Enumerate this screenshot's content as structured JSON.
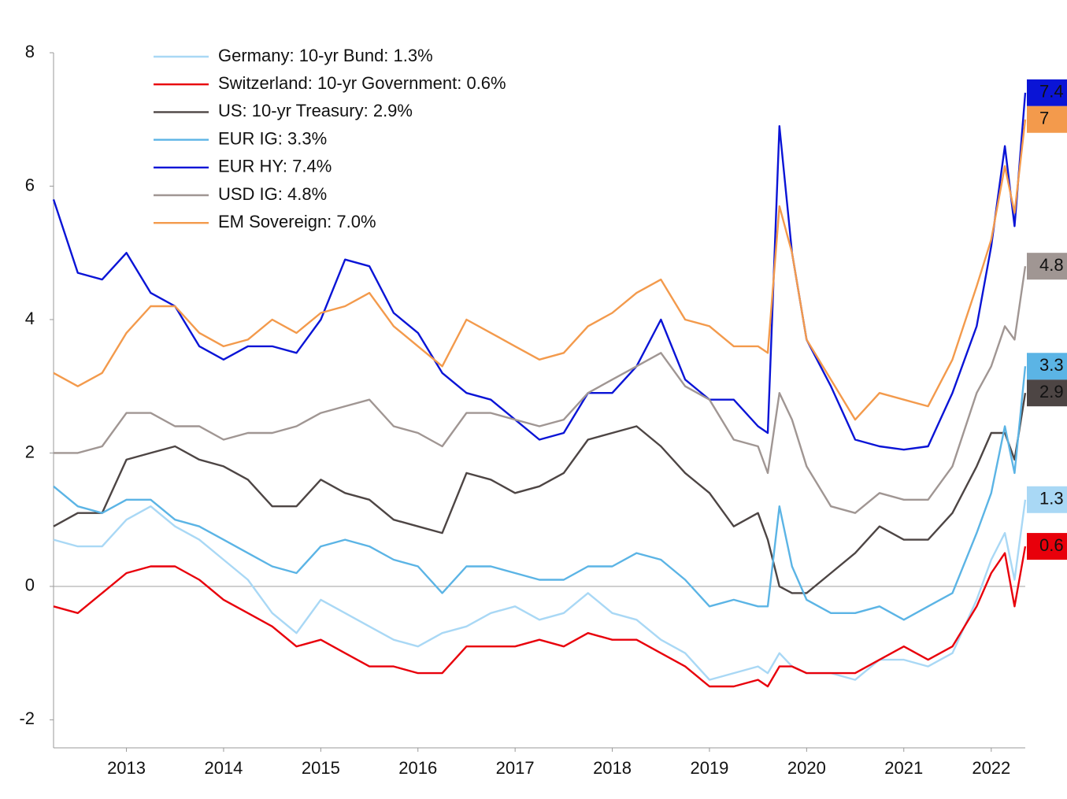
{
  "chart_data": {
    "type": "line",
    "x": [
      2012.75,
      2013.0,
      2013.25,
      2013.5,
      2013.75,
      2014.0,
      2014.25,
      2014.5,
      2014.75,
      2015.0,
      2015.25,
      2015.5,
      2015.75,
      2016.0,
      2016.25,
      2016.5,
      2016.75,
      2017.0,
      2017.25,
      2017.5,
      2017.75,
      2018.0,
      2018.25,
      2018.5,
      2018.75,
      2019.0,
      2019.25,
      2019.5,
      2019.75,
      2020.0,
      2020.1,
      2020.22,
      2020.35,
      2020.5,
      2020.75,
      2021.0,
      2021.25,
      2021.5,
      2021.75,
      2022.0,
      2022.25,
      2022.4,
      2022.54,
      2022.64,
      2022.75
    ],
    "xlim": [
      2012.75,
      2022.75
    ],
    "xticks": [
      {
        "value": 2013.5,
        "label": "2013"
      },
      {
        "value": 2014.5,
        "label": "2014"
      },
      {
        "value": 2015.5,
        "label": "2015"
      },
      {
        "value": 2016.5,
        "label": "2016"
      },
      {
        "value": 2017.5,
        "label": "2017"
      },
      {
        "value": 2018.5,
        "label": "2018"
      },
      {
        "value": 2019.5,
        "label": "2019"
      },
      {
        "value": 2020.5,
        "label": "2020"
      },
      {
        "value": 2021.5,
        "label": "2021"
      },
      {
        "value": 2022.4,
        "label": "2022"
      }
    ],
    "ylim": [
      -2.42,
      8
    ],
    "yticks": [
      -2,
      0,
      2,
      4,
      6,
      8
    ],
    "series": [
      {
        "name": "Germany: 10-yr Bund: 1.3%",
        "color": "#a9d8f5",
        "values": [
          0.7,
          0.6,
          0.6,
          1.0,
          1.2,
          0.9,
          0.7,
          0.4,
          0.1,
          -0.4,
          -0.7,
          -0.2,
          -0.4,
          -0.6,
          -0.8,
          -0.9,
          -0.7,
          -0.6,
          -0.4,
          -0.3,
          -0.5,
          -0.4,
          -0.1,
          -0.4,
          -0.5,
          -0.8,
          -1.0,
          -1.4,
          -1.3,
          -1.2,
          -1.3,
          -1.0,
          -1.2,
          -1.3,
          -1.3,
          -1.4,
          -1.1,
          -1.1,
          -1.2,
          -1.0,
          -0.2,
          0.4,
          0.8,
          0.1,
          1.3
        ]
      },
      {
        "name": "Switzerland: 10-yr Government: 0.6%",
        "color": "#e8000b",
        "values": [
          -0.3,
          -0.4,
          -0.1,
          0.2,
          0.3,
          0.3,
          0.1,
          -0.2,
          -0.4,
          -0.6,
          -0.9,
          -0.8,
          -1.0,
          -1.2,
          -1.2,
          -1.3,
          -1.3,
          -0.9,
          -0.9,
          -0.9,
          -0.8,
          -0.9,
          -0.7,
          -0.8,
          -0.8,
          -1.0,
          -1.2,
          -1.5,
          -1.5,
          -1.4,
          -1.5,
          -1.2,
          -1.2,
          -1.3,
          -1.3,
          -1.3,
          -1.1,
          -0.9,
          -1.1,
          -0.9,
          -0.3,
          0.2,
          0.5,
          -0.3,
          0.6
        ]
      },
      {
        "name": "US: 10-yr Treasury: 2.9%",
        "color": "#4d4544",
        "values": [
          0.9,
          1.1,
          1.1,
          1.9,
          2.0,
          2.1,
          1.9,
          1.8,
          1.6,
          1.2,
          1.2,
          1.6,
          1.4,
          1.3,
          1.0,
          0.9,
          0.8,
          1.7,
          1.6,
          1.4,
          1.5,
          1.7,
          2.2,
          2.3,
          2.4,
          2.1,
          1.7,
          1.4,
          0.9,
          1.1,
          0.7,
          0.0,
          -0.1,
          -0.1,
          0.2,
          0.5,
          0.9,
          0.7,
          0.7,
          1.1,
          1.8,
          2.3,
          2.3,
          1.9,
          2.9
        ]
      },
      {
        "name": "EUR IG: 3.3%",
        "color": "#5bb4e5",
        "values": [
          1.5,
          1.2,
          1.1,
          1.3,
          1.3,
          1.0,
          0.9,
          0.7,
          0.5,
          0.3,
          0.2,
          0.6,
          0.7,
          0.6,
          0.4,
          0.3,
          -0.1,
          0.3,
          0.3,
          0.2,
          0.1,
          0.1,
          0.3,
          0.3,
          0.5,
          0.4,
          0.1,
          -0.3,
          -0.2,
          -0.3,
          -0.3,
          1.2,
          0.3,
          -0.2,
          -0.4,
          -0.4,
          -0.3,
          -0.5,
          -0.3,
          -0.1,
          0.8,
          1.4,
          2.4,
          1.7,
          3.3
        ]
      },
      {
        "name": "EUR HY: 7.4%",
        "color": "#0a14d6",
        "values": [
          5.8,
          4.7,
          4.6,
          5.0,
          4.4,
          4.2,
          3.6,
          3.4,
          3.6,
          3.6,
          3.5,
          4.0,
          4.9,
          4.8,
          4.1,
          3.8,
          3.2,
          2.9,
          2.8,
          2.5,
          2.2,
          2.3,
          2.9,
          2.9,
          3.3,
          4.0,
          3.1,
          2.8,
          2.8,
          2.4,
          2.3,
          6.9,
          5.0,
          3.7,
          3.0,
          2.2,
          2.1,
          2.05,
          2.1,
          2.9,
          3.9,
          5.1,
          6.6,
          5.4,
          7.4
        ]
      },
      {
        "name": "USD IG: 4.8%",
        "color": "#a09693",
        "values": [
          2.0,
          2.0,
          2.1,
          2.6,
          2.6,
          2.4,
          2.4,
          2.2,
          2.3,
          2.3,
          2.4,
          2.6,
          2.7,
          2.8,
          2.4,
          2.3,
          2.1,
          2.6,
          2.6,
          2.5,
          2.4,
          2.5,
          2.9,
          3.1,
          3.3,
          3.5,
          3.0,
          2.8,
          2.2,
          2.1,
          1.7,
          2.9,
          2.5,
          1.8,
          1.2,
          1.1,
          1.4,
          1.3,
          1.3,
          1.8,
          2.9,
          3.3,
          3.9,
          3.7,
          4.8
        ]
      },
      {
        "name": "EM Sovereign: 7.0%",
        "color": "#f39a4c",
        "values": [
          3.2,
          3.0,
          3.2,
          3.8,
          4.2,
          4.2,
          3.8,
          3.6,
          3.7,
          4.0,
          3.8,
          4.1,
          4.2,
          4.4,
          3.9,
          3.6,
          3.3,
          4.0,
          3.8,
          3.6,
          3.4,
          3.5,
          3.9,
          4.1,
          4.4,
          4.6,
          4.0,
          3.9,
          3.6,
          3.6,
          3.5,
          5.7,
          5.0,
          3.7,
          3.1,
          2.5,
          2.9,
          2.8,
          2.7,
          3.4,
          4.5,
          5.2,
          6.3,
          5.6,
          7.0
        ]
      }
    ]
  }
}
